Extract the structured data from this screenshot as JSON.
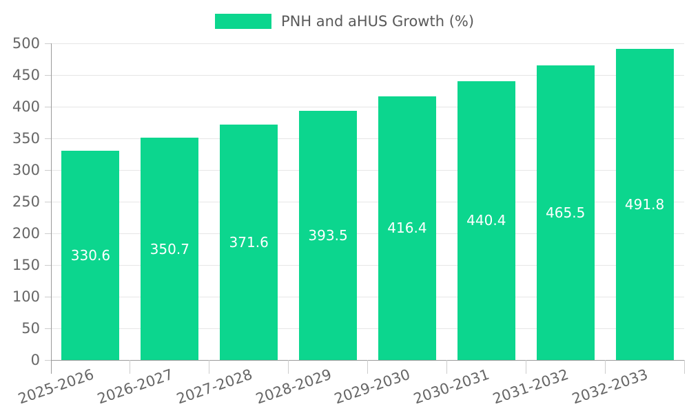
{
  "legend": {
    "label": "PNH and aHUS Growth (%)"
  },
  "colors": {
    "bar": "#0cd68e",
    "bar_value_text": "#ffffff",
    "axis_text": "#666666",
    "legend_text": "#595959",
    "gridline": "#e6e6e6",
    "axis_line": "#999999",
    "tick": "#cccccc",
    "background": "#ffffff"
  },
  "chart_data": {
    "type": "bar",
    "title": "",
    "xlabel": "",
    "ylabel": "",
    "categories": [
      "2025-2026",
      "2026-2027",
      "2027-2028",
      "2028-2029",
      "2029-2030",
      "2030-2031",
      "2031-2032",
      "2032-2033"
    ],
    "series": [
      {
        "name": "PNH and aHUS Growth (%)",
        "values": [
          330.6,
          350.7,
          371.6,
          393.5,
          416.4,
          440.4,
          465.5,
          491.8
        ]
      }
    ],
    "value_labels": "inside-center, one decimal, white",
    "ylim": [
      0,
      500
    ],
    "ytick_step": 50,
    "yticks": [
      0,
      50,
      100,
      150,
      200,
      250,
      300,
      350,
      400,
      450,
      500
    ],
    "grid": true,
    "legend_position": "top-center",
    "x_label_rotation_deg": -19
  }
}
